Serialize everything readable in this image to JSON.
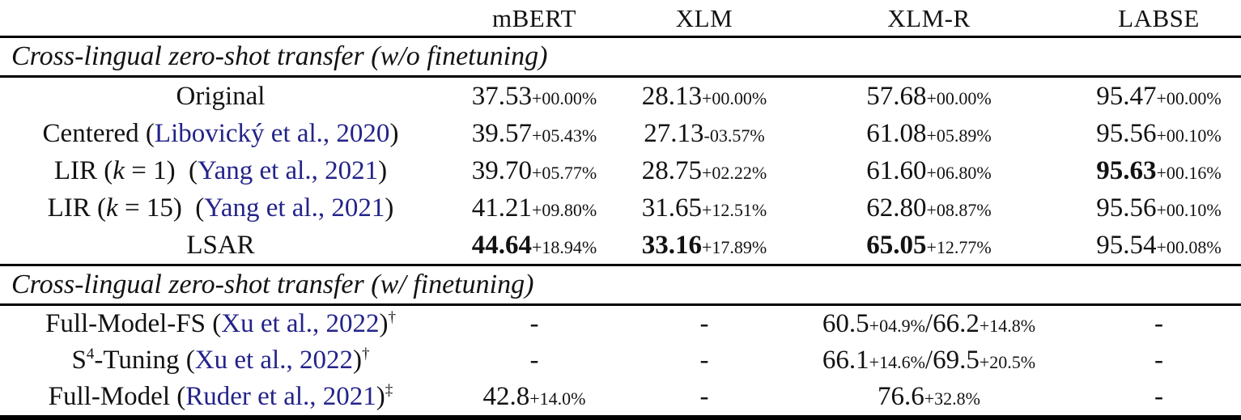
{
  "table": {
    "citation_color": "#23238a",
    "columns": [
      "mBERT",
      "XLM",
      "XLM-R",
      "LABSE"
    ],
    "sections": [
      {
        "title": "Cross-lingual zero-shot transfer (w/o finetuning)",
        "rows": [
          {
            "label": [
              {
                "t": "Original"
              }
            ],
            "cells": [
              [
                {
                  "v": "37.53",
                  "d": "+00.00%"
                }
              ],
              [
                {
                  "v": "28.13",
                  "d": "+00.00%"
                }
              ],
              [
                {
                  "v": "57.68",
                  "d": "+00.00%"
                }
              ],
              [
                {
                  "v": "95.47",
                  "d": "+00.00%"
                }
              ]
            ]
          },
          {
            "label": [
              {
                "t": "Centered ("
              },
              {
                "t": "Libovický et al., 2020",
                "cite": true
              },
              {
                "t": ")"
              }
            ],
            "cells": [
              [
                {
                  "v": "39.57",
                  "d": "+05.43%"
                }
              ],
              [
                {
                  "v": "27.13",
                  "d": "-03.57%"
                }
              ],
              [
                {
                  "v": "61.08",
                  "d": "+05.89%"
                }
              ],
              [
                {
                  "v": "95.56",
                  "d": "+00.10%"
                }
              ]
            ]
          },
          {
            "label": [
              {
                "t": "LIR ("
              },
              {
                "t": "k",
                "math": true
              },
              {
                "t": " = 1) ("
              },
              {
                "t": "Yang et al., 2021",
                "cite": true
              },
              {
                "t": ")"
              }
            ],
            "cells": [
              [
                {
                  "v": "39.70",
                  "d": "+05.77%"
                }
              ],
              [
                {
                  "v": "28.75",
                  "d": "+02.22%"
                }
              ],
              [
                {
                  "v": "61.60",
                  "d": "+06.80%"
                }
              ],
              [
                {
                  "v": "95.63",
                  "d": "+00.16%",
                  "b": true
                }
              ]
            ]
          },
          {
            "label": [
              {
                "t": "LIR ("
              },
              {
                "t": "k",
                "math": true
              },
              {
                "t": " = 15) ("
              },
              {
                "t": "Yang et al., 2021",
                "cite": true
              },
              {
                "t": ")"
              }
            ],
            "cells": [
              [
                {
                  "v": "41.21",
                  "d": "+09.80%"
                }
              ],
              [
                {
                  "v": "31.65",
                  "d": "+12.51%"
                }
              ],
              [
                {
                  "v": "62.80",
                  "d": "+08.87%"
                }
              ],
              [
                {
                  "v": "95.56",
                  "d": "+00.10%"
                }
              ]
            ]
          },
          {
            "label": [
              {
                "t": "LSAR"
              }
            ],
            "cells": [
              [
                {
                  "v": "44.64",
                  "d": "+18.94%",
                  "b": true
                }
              ],
              [
                {
                  "v": "33.16",
                  "d": "+17.89%",
                  "b": true
                }
              ],
              [
                {
                  "v": "65.05",
                  "d": "+12.77%",
                  "b": true
                }
              ],
              [
                {
                  "v": "95.54",
                  "d": "+00.08%"
                }
              ]
            ]
          }
        ]
      },
      {
        "title": "Cross-lingual zero-shot transfer (w/ finetuning)",
        "rows": [
          {
            "compact": true,
            "label": [
              {
                "t": "Full-Model-FS ("
              },
              {
                "t": "Xu et al., 2022",
                "cite": true
              },
              {
                "t": ")"
              },
              {
                "t": "†",
                "sup": true
              }
            ],
            "cells": [
              "-",
              "-",
              [
                {
                  "v": "60.5",
                  "d": "+04.9%"
                },
                {
                  "v": "66.2",
                  "d": "+14.8%"
                }
              ],
              "-"
            ]
          },
          {
            "compact": true,
            "label": [
              {
                "t": "S"
              },
              {
                "t": "4",
                "sup": true
              },
              {
                "t": "-Tuning ("
              },
              {
                "t": "Xu et al., 2022",
                "cite": true
              },
              {
                "t": ")"
              },
              {
                "t": "†",
                "sup": true
              }
            ],
            "cells": [
              "-",
              "-",
              [
                {
                  "v": "66.1",
                  "d": "+14.6%"
                },
                {
                  "v": "69.5",
                  "d": "+20.5%"
                }
              ],
              "-"
            ]
          },
          {
            "compact": true,
            "label": [
              {
                "t": "Full-Model ("
              },
              {
                "t": "Ruder et al., 2021",
                "cite": true
              },
              {
                "t": ")"
              },
              {
                "t": "‡",
                "sup": true
              }
            ],
            "cells": [
              [
                {
                  "v": "42.8",
                  "d": "+14.0%"
                }
              ],
              "-",
              [
                {
                  "v": "76.6",
                  "d": "+32.8%"
                }
              ],
              "-"
            ]
          }
        ]
      }
    ]
  }
}
